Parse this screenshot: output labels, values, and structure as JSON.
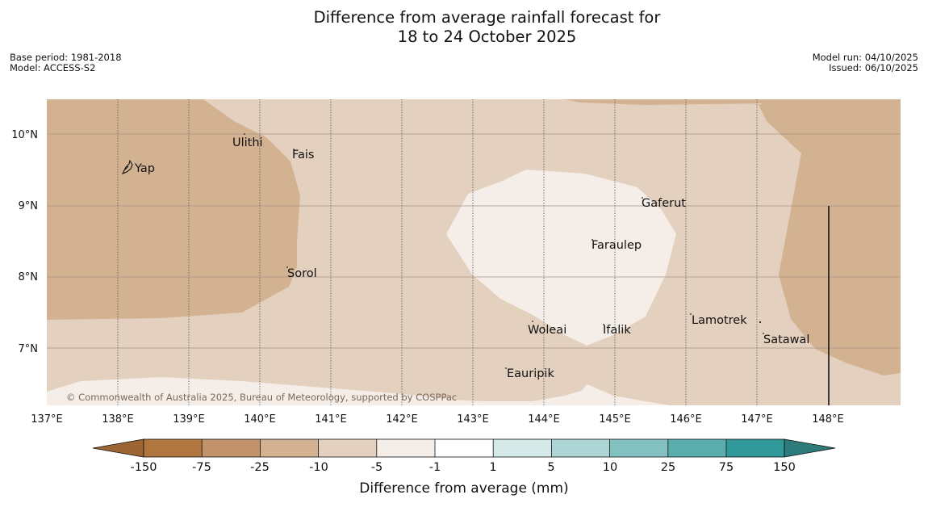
{
  "title": {
    "line1": "Difference from average rainfall forecast for",
    "line2": "18 to 24 October 2025"
  },
  "info_left": {
    "base_period": "Base period: 1981-2018",
    "model": "Model: ACCESS-S2"
  },
  "info_right": {
    "model_run": "Model run: 04/10/2025",
    "issued": "Issued: 06/10/2025"
  },
  "map": {
    "lat_labels": [
      "10°N",
      "9°N",
      "8°N",
      "7°N"
    ],
    "lon_labels": [
      "137°E",
      "138°E",
      "139°E",
      "140°E",
      "141°E",
      "142°E",
      "143°E",
      "144°E",
      "145°E",
      "146°E",
      "147°E",
      "148°E"
    ],
    "places": [
      {
        "name": "Ulithi"
      },
      {
        "name": "Fais"
      },
      {
        "name": "Yap"
      },
      {
        "name": "Gaferut"
      },
      {
        "name": "Faraulep"
      },
      {
        "name": "Sorol"
      },
      {
        "name": "Lamotrek"
      },
      {
        "name": "Woleai"
      },
      {
        "name": "Ifalik"
      },
      {
        "name": "Satawal"
      },
      {
        "name": "Eauripik"
      }
    ],
    "copyright": "© Commonwealth of Australia 2025, Bureau of Meteorology, supported by COSPPac"
  },
  "legend": {
    "label": "Difference from average (mm)",
    "ticks": [
      "-150",
      "-75",
      "-25",
      "-10",
      "-5",
      "-1",
      "1",
      "5",
      "10",
      "25",
      "75",
      "150"
    ],
    "colors": {
      "below_150": "#9c6533",
      "c1": "#b0763e",
      "c2": "#c2936a",
      "c3": "#d3b292",
      "c4": "#e3d0bf",
      "c5": "#f4ede8",
      "c6": "#ffffff",
      "c7": "#d5e9e8",
      "c8": "#add5d5",
      "c9": "#83c1c1",
      "c10": "#5aadad",
      "c11": "#31999a",
      "above_150": "#2e7b7b"
    }
  }
}
